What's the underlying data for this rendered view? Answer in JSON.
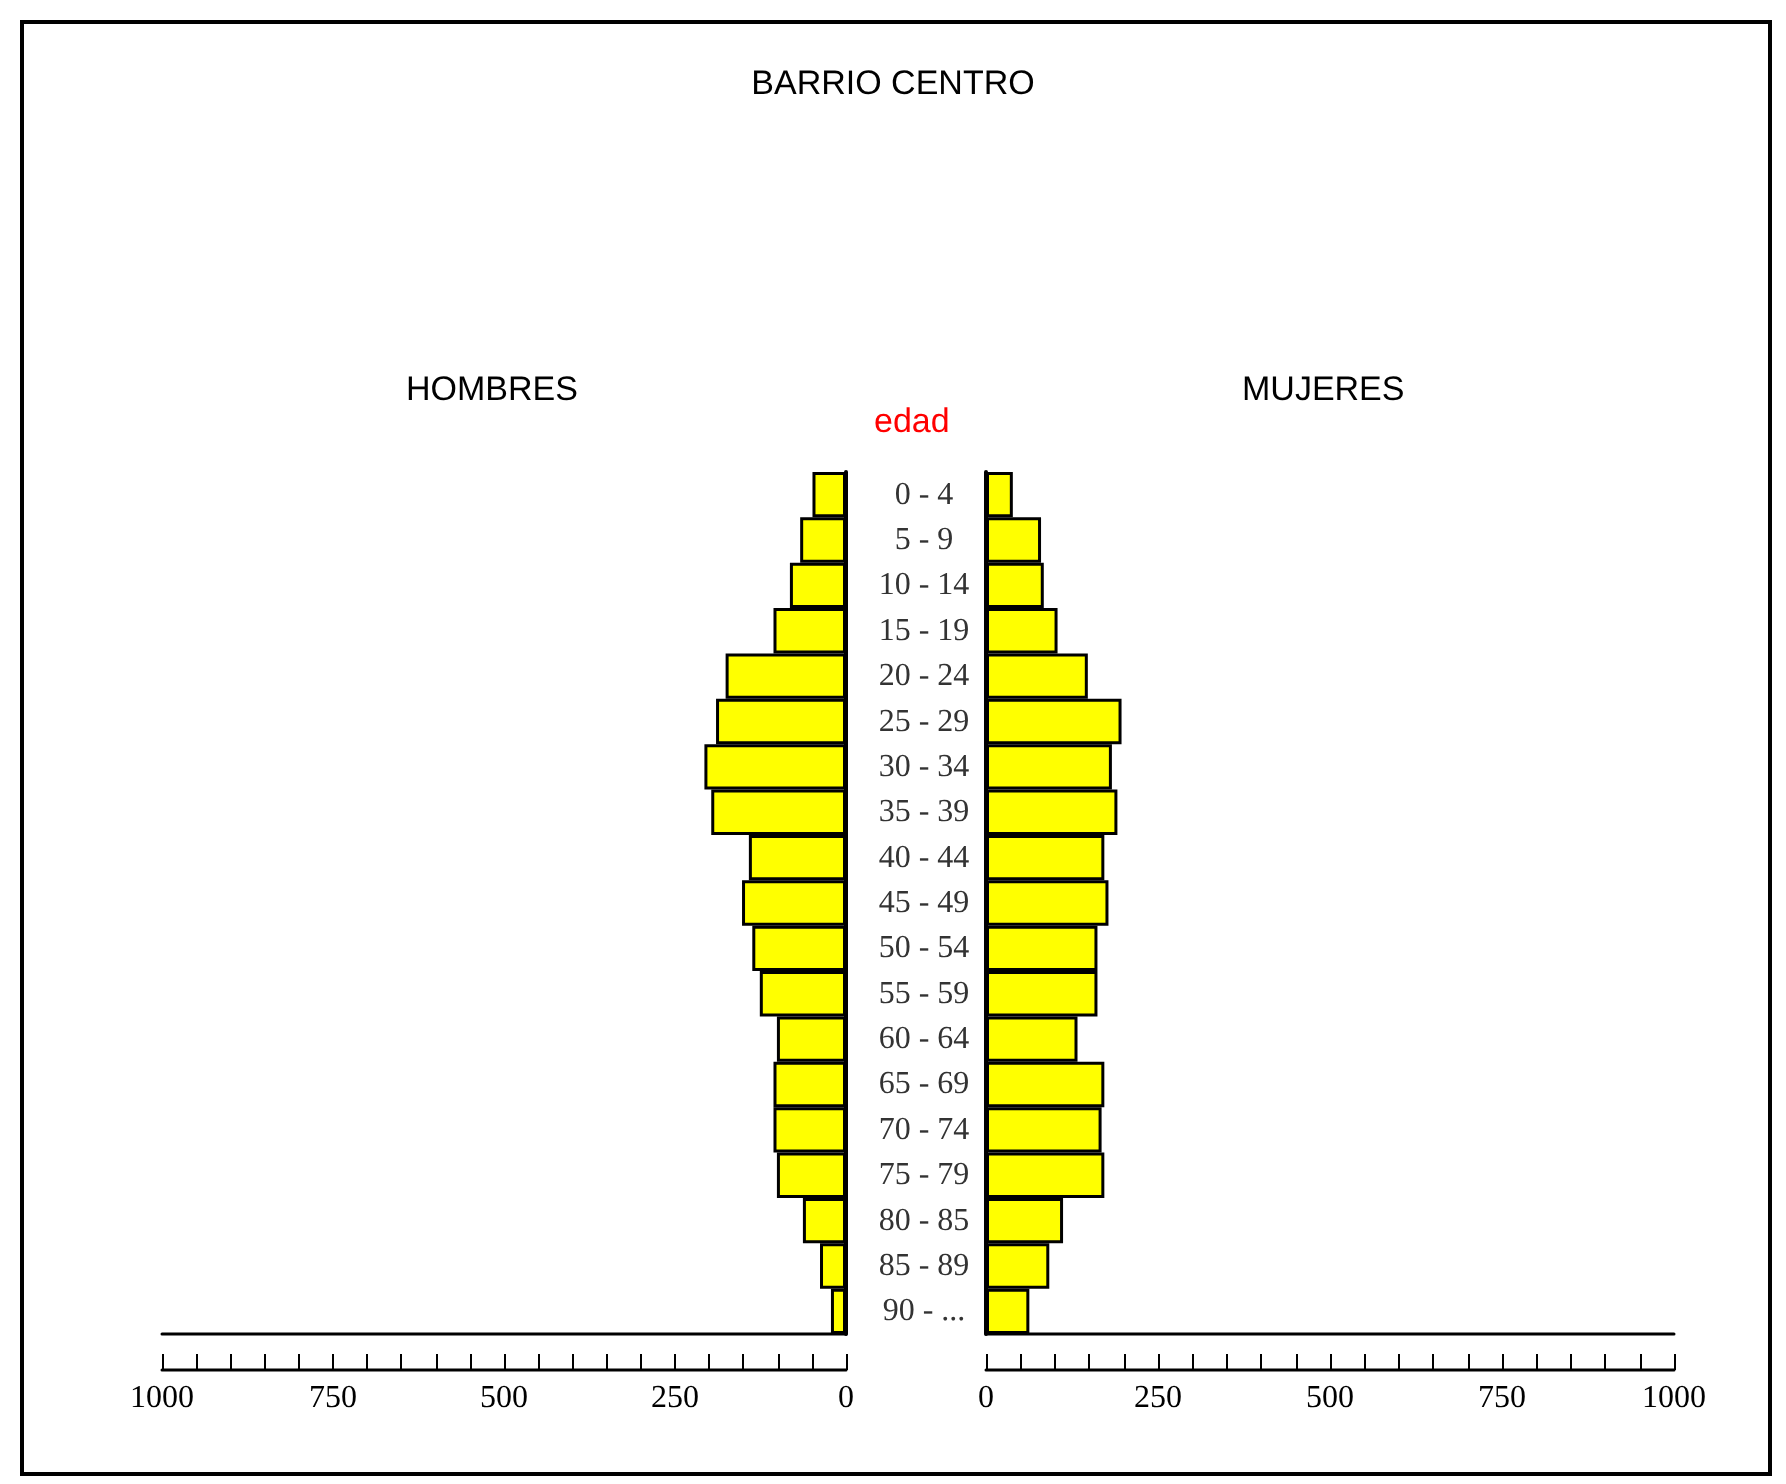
{
  "chart_data": [
    {
      "type": "bar",
      "orientation": "horizontal",
      "title": "BARRIO CENTRO",
      "subtitle": "HOMBRES",
      "tick_labels": "x",
      "grid": false,
      "categories": [
        null,
        null,
        null,
        null,
        null,
        null,
        null,
        null,
        null,
        null,
        null,
        null,
        null,
        null,
        null,
        null,
        null,
        null,
        null
      ],
      "series": [
        {
          "color": "#ffff00",
          "values": [
            49,
            67,
            82,
            106,
            176,
            190,
            207,
            197,
            142,
            152,
            137,
            126,
            101,
            106,
            106,
            101,
            63,
            38,
            22
          ]
        }
      ],
      "xlim": [
        1000,
        0
      ],
      "xticks": [
        {
          "value": 1000,
          "label": "1000"
        },
        {
          "value": 950,
          "label": null
        },
        {
          "value": 900,
          "label": null
        },
        {
          "value": 850,
          "label": null
        },
        {
          "value": 800,
          "label": null
        },
        {
          "value": 750,
          "label": "750"
        },
        {
          "value": 700,
          "label": null
        },
        {
          "value": 650,
          "label": null
        },
        {
          "value": 600,
          "label": null
        },
        {
          "value": 550,
          "label": null
        },
        {
          "value": 500,
          "label": "500"
        },
        {
          "value": 450,
          "label": null
        },
        {
          "value": 400,
          "label": null
        },
        {
          "value": 350,
          "label": null
        },
        {
          "value": 300,
          "label": null
        },
        {
          "value": 250,
          "label": "250"
        },
        {
          "value": 200,
          "label": null
        },
        {
          "value": 150,
          "label": null
        },
        {
          "value": 100,
          "label": null
        },
        {
          "value": 50,
          "label": null
        },
        {
          "value": 0,
          "label": "0"
        }
      ]
    },
    {
      "type": "bar",
      "orientation": "horizontal",
      "subtitle": "MUJERES",
      "ylabel": "edad",
      "grid": false,
      "categories": [
        "0 - 4",
        "5 - 9",
        "10 - 14",
        "15 - 19",
        "20 - 24",
        "25 - 29",
        "30 - 34",
        "35 - 39",
        "40 - 44",
        "45 - 49",
        "50 - 54",
        "55 - 59",
        "60 - 64",
        "65 - 69",
        "70 - 74",
        "75 - 79",
        "80 - 85",
        "85 - 89",
        "90 - ..."
      ],
      "series": [
        {
          "color": "#ffff00",
          "values": [
            39,
            80,
            84,
            104,
            148,
            197,
            183,
            191,
            172,
            178,
            162,
            162,
            133,
            172,
            168,
            172,
            112,
            92,
            63
          ]
        }
      ],
      "xlim": [
        0,
        1000
      ],
      "xticks": [
        {
          "value": 0,
          "label": "0"
        },
        {
          "value": 50,
          "label": null
        },
        {
          "value": 100,
          "label": null
        },
        {
          "value": 150,
          "label": null
        },
        {
          "value": 200,
          "label": null
        },
        {
          "value": 250,
          "label": "250"
        },
        {
          "value": 300,
          "label": null
        },
        {
          "value": 350,
          "label": null
        },
        {
          "value": 400,
          "label": null
        },
        {
          "value": 450,
          "label": null
        },
        {
          "value": 500,
          "label": "500"
        },
        {
          "value": 550,
          "label": null
        },
        {
          "value": 600,
          "label": null
        },
        {
          "value": 650,
          "label": null
        },
        {
          "value": 700,
          "label": null
        },
        {
          "value": 750,
          "label": "750"
        },
        {
          "value": 800,
          "label": null
        },
        {
          "value": 850,
          "label": null
        },
        {
          "value": 900,
          "label": null
        },
        {
          "value": 950,
          "label": null
        },
        {
          "value": 1000,
          "label": "1000"
        }
      ]
    }
  ]
}
